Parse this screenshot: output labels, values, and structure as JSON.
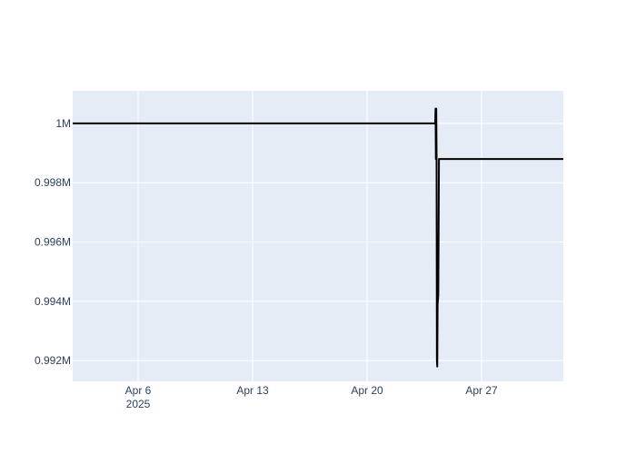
{
  "chart_data": {
    "type": "line",
    "title": "",
    "xlabel": "",
    "ylabel": "",
    "grid": true,
    "legend": "none",
    "xlim": [
      "2025-04-02",
      "2025-05-02"
    ],
    "ylim": [
      991300,
      1001100
    ],
    "x_ticks": [
      {
        "x": "2025-04-06",
        "label": "Apr 6",
        "sublabel": "2025"
      },
      {
        "x": "2025-04-13",
        "label": "Apr 13",
        "sublabel": ""
      },
      {
        "x": "2025-04-20",
        "label": "Apr 20",
        "sublabel": ""
      },
      {
        "x": "2025-04-27",
        "label": "Apr 27",
        "sublabel": ""
      }
    ],
    "y_ticks": [
      {
        "y": 1000000,
        "label": "1M"
      },
      {
        "y": 998000,
        "label": "0.998M"
      },
      {
        "y": 996000,
        "label": "0.996M"
      },
      {
        "y": 994000,
        "label": "0.994M"
      },
      {
        "y": 992000,
        "label": "0.992M"
      }
    ],
    "series": [
      {
        "color": "#000000",
        "points": [
          {
            "x": "2025-04-02 00:00",
            "y": 1000000
          },
          {
            "x": "2025-04-24 04:00",
            "y": 1000000
          },
          {
            "x": "2025-04-24 04:30",
            "y": 1000500
          },
          {
            "x": "2025-04-24 05:00",
            "y": 998800
          },
          {
            "x": "2025-04-24 05:30",
            "y": 1000500
          },
          {
            "x": "2025-04-24 06:00",
            "y": 998900
          },
          {
            "x": "2025-04-24 06:30",
            "y": 992000
          },
          {
            "x": "2025-04-24 07:00",
            "y": 991800
          },
          {
            "x": "2025-04-24 07:30",
            "y": 993900
          },
          {
            "x": "2025-04-24 08:30",
            "y": 994200
          },
          {
            "x": "2025-04-24 09:30",
            "y": 998800
          },
          {
            "x": "2025-05-02 00:00",
            "y": 998800
          }
        ]
      }
    ]
  },
  "colors": {
    "plot_bg": "#e5ecf6",
    "grid": "#ffffff",
    "text": "#2a3f5f"
  }
}
